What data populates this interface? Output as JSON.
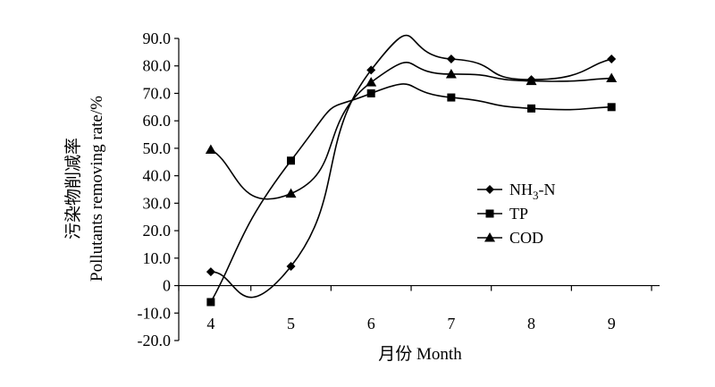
{
  "chart_data": {
    "type": "line",
    "smooth": true,
    "x": [
      4,
      5,
      6,
      7,
      8,
      9
    ],
    "x_tick_labels": [
      "4",
      "5",
      "6",
      "7",
      "8",
      "9"
    ],
    "xlim": [
      3.6,
      9.6
    ],
    "ylim": [
      -20,
      90
    ],
    "y_ticks": [
      90,
      80,
      70,
      60,
      50,
      40,
      30,
      20,
      10,
      0,
      -10,
      -20
    ],
    "y_tick_labels": [
      "90.0",
      "80.0",
      "70.0",
      "60.0",
      "50.0",
      "40.0",
      "30.0",
      "20.0",
      "10.0",
      "0",
      "-10.0",
      "-20.0"
    ],
    "xlabel": "月份 Month",
    "ylabel_cn": "污染物削减率",
    "ylabel_en": "Pollutants removing rate/%",
    "grid": false,
    "legend_position": "right-middle",
    "series": [
      {
        "name": "NH3-N",
        "label_main": "NH",
        "label_sub": "3",
        "label_tail": "-N",
        "marker": "diamond",
        "color": "#000000",
        "values": [
          5.0,
          7.0,
          78.5,
          82.5,
          75.0,
          82.5
        ]
      },
      {
        "name": "TP",
        "marker": "square",
        "color": "#000000",
        "values": [
          -6.0,
          45.5,
          70.0,
          68.5,
          64.5,
          65.0
        ]
      },
      {
        "name": "COD",
        "marker": "triangle",
        "color": "#000000",
        "values": [
          49.5,
          33.5,
          74.0,
          77.0,
          74.5,
          75.5
        ]
      }
    ]
  }
}
